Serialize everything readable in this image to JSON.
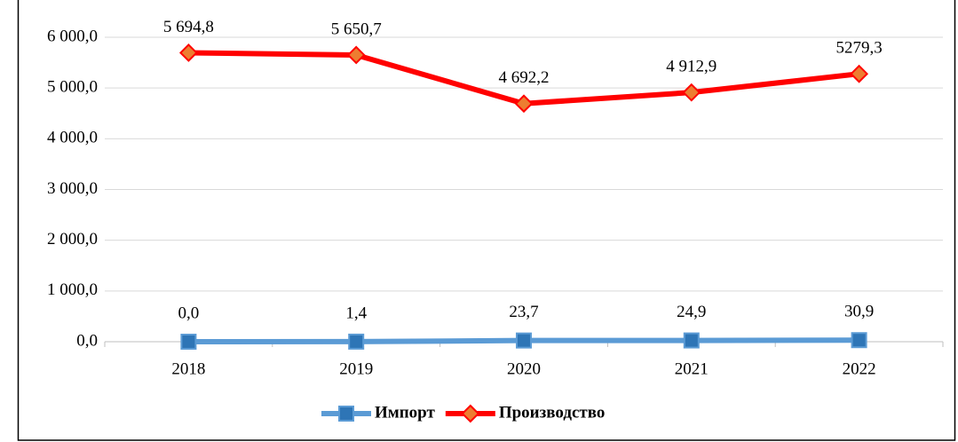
{
  "chart_data": {
    "type": "line",
    "categories": [
      "2018",
      "2019",
      "2020",
      "2021",
      "2022"
    ],
    "series": [
      {
        "name": "Импорт",
        "color": "#5b9bd5",
        "marker": "square",
        "values": [
          0,
          1.4,
          23.7,
          24.9,
          30.9
        ],
        "value_labels": [
          "0,0",
          "1,4",
          "23,7",
          "24,9",
          "30,9"
        ]
      },
      {
        "name": "Производство",
        "color": "#ff0000",
        "marker": "diamond",
        "values": [
          5694.8,
          5650.7,
          4692.2,
          4912.9,
          5279.3
        ],
        "value_labels": [
          "5 694,8",
          "5 650,7",
          "4 692,2",
          "4 912,9",
          "5279,3"
        ]
      }
    ],
    "ylim": [
      0,
      6000
    ],
    "yticks": [
      {
        "value": 0,
        "label": "0,0"
      },
      {
        "value": 1000,
        "label": "1 000,0"
      },
      {
        "value": 2000,
        "label": "2 000,0"
      },
      {
        "value": 3000,
        "label": "3 000,0"
      },
      {
        "value": 4000,
        "label": "4 000,0"
      },
      {
        "value": 5000,
        "label": "5 000,0"
      },
      {
        "value": 6000,
        "label": "6 000,0"
      }
    ],
    "grid": true,
    "legend": "bottom"
  }
}
